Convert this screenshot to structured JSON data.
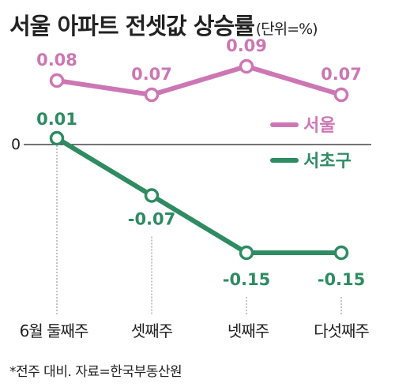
{
  "title": "서울 아파트 전셋값 상승률",
  "unit_label": "(단위=%)",
  "footnote": "*전주 대비. 자료=한국부동산원",
  "colors": {
    "seoul": "#cc77b4",
    "seocho": "#2e8b62",
    "axis": "#222222",
    "guide": "#888888"
  },
  "chart_data": {
    "type": "line",
    "categories": [
      "6월 둘째주",
      "셋째주",
      "넷째주",
      "다섯째주"
    ],
    "series": [
      {
        "name": "서울",
        "values": [
          0.08,
          0.07,
          0.09,
          0.07
        ],
        "labels": [
          "0.08",
          "0.07",
          "0.09",
          "0.07"
        ]
      },
      {
        "name": "서초구",
        "values": [
          0.01,
          -0.07,
          -0.15,
          -0.15
        ],
        "labels": [
          "0.01",
          "-0.07",
          "-0.15",
          "-0.15"
        ]
      }
    ],
    "zero_label": "0",
    "legend_position": "right",
    "grid": false
  }
}
